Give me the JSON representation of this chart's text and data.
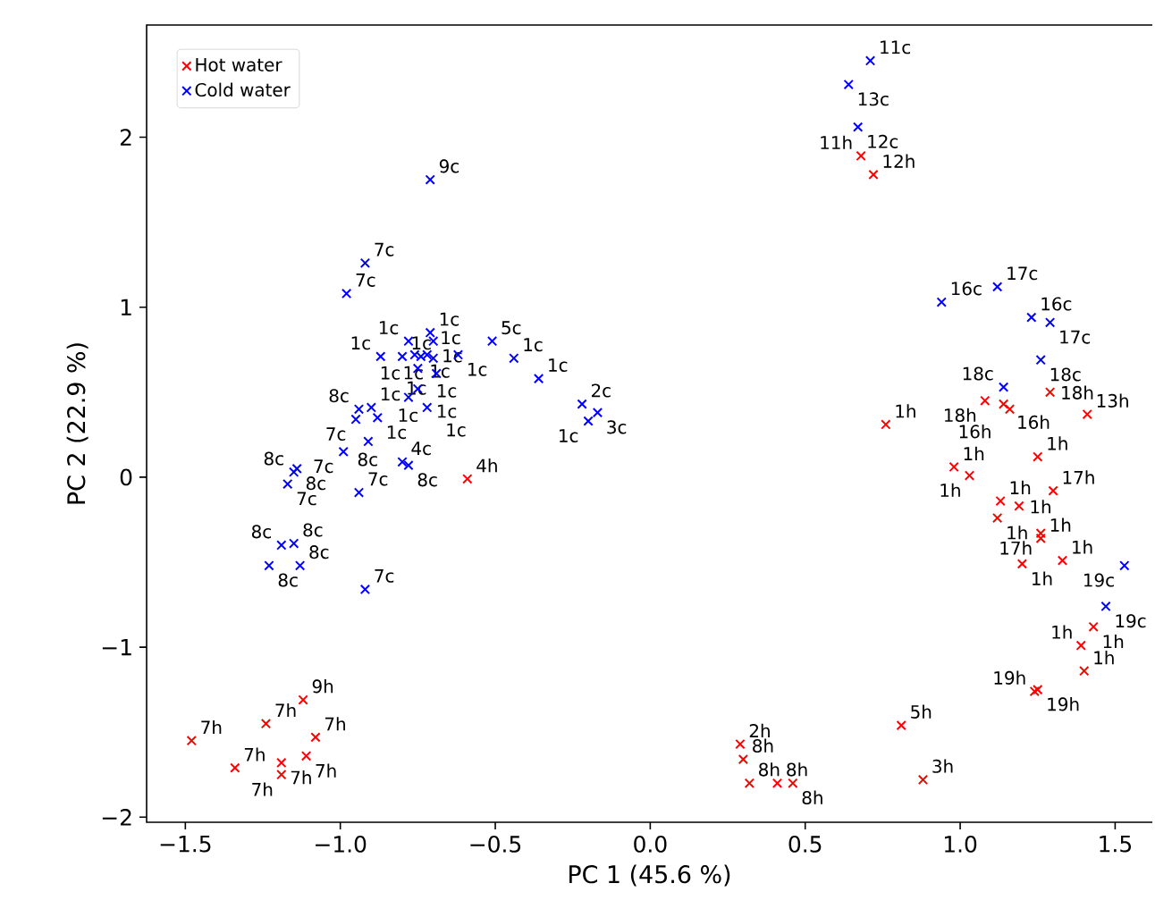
{
  "chart_data": {
    "type": "scatter",
    "xlabel": "PC 1 (45.6 %)",
    "ylabel": "PC 2 (22.9 %)",
    "xlim": [
      -1.625,
      1.62
    ],
    "ylim": [
      -2.03,
      2.66
    ],
    "xticks": [
      {
        "value": -1.5,
        "label": "−1.5"
      },
      {
        "value": -1.0,
        "label": "−1.0"
      },
      {
        "value": -0.5,
        "label": "−0.5"
      },
      {
        "value": 0,
        "label": "0.0"
      },
      0.5,
      {
        "value": 1.0,
        "label": "1.0"
      },
      1.5
    ],
    "yticks": [
      {
        "value": -2,
        "label": "−2"
      },
      {
        "value": -1,
        "label": "−1"
      },
      0,
      1,
      2
    ],
    "legend": "top left",
    "marker": "cross",
    "series": [
      {
        "name": "Hot water",
        "color": "#ff0000",
        "x": [
          -0.59,
          0.68,
          0.72,
          1.08,
          1.14,
          1.16,
          1.29,
          1.41,
          1.25,
          0.98,
          1.03,
          1.3,
          1.13,
          1.19,
          1.12,
          1.26,
          1.26,
          0.76,
          1.2,
          1.33,
          1.43,
          1.39,
          1.4,
          1.25,
          1.24,
          0.81,
          0.88,
          0.29,
          0.3,
          0.32,
          0.41,
          0.46,
          -1.48,
          -1.34,
          -1.24,
          -1.12,
          -1.08,
          -1.11,
          -1.19,
          -1.19
        ],
        "values": [
          -0.01,
          1.89,
          1.78,
          0.45,
          0.43,
          0.4,
          0.5,
          0.37,
          0.12,
          0.06,
          0.01,
          -0.08,
          -0.14,
          -0.17,
          -0.24,
          -0.33,
          -0.36,
          0.31,
          -0.51,
          -0.49,
          -0.88,
          -0.99,
          -1.14,
          -1.25,
          -1.26,
          -1.46,
          -1.78,
          -1.57,
          -1.66,
          -1.8,
          -1.8,
          -1.8,
          -1.55,
          -1.71,
          -1.45,
          -1.31,
          -1.53,
          -1.64,
          -1.68,
          -1.75
        ]
      },
      {
        "name": "Cold water",
        "color": "#0000ff",
        "x": [
          -0.92,
          -0.98,
          -0.71,
          -0.51,
          -0.44,
          -0.36,
          -0.22,
          -0.17,
          -0.2,
          -0.62,
          -0.78,
          -0.99,
          -0.91,
          -0.94,
          -0.78,
          -0.71,
          -0.7,
          -0.87,
          -0.8,
          -0.76,
          -0.74,
          -0.72,
          -0.7,
          -0.75,
          -0.69,
          -0.75,
          -0.78,
          -0.72,
          -0.94,
          -0.9,
          -0.95,
          -0.88,
          -1.14,
          -1.17,
          -1.19,
          -1.15,
          -1.23,
          -1.13,
          -0.92,
          -0.8,
          -1.15,
          0.71,
          0.64,
          0.67,
          0.94,
          1.12,
          1.23,
          1.29,
          1.26,
          1.14,
          1.53,
          1.47
        ],
        "values": [
          1.26,
          1.08,
          1.75,
          0.8,
          0.7,
          0.58,
          0.43,
          0.38,
          0.33,
          0.72,
          0.07,
          0.15,
          0.21,
          -0.09,
          0.8,
          0.85,
          0.8,
          0.71,
          0.71,
          0.72,
          0.71,
          0.72,
          0.7,
          0.64,
          0.61,
          0.52,
          0.47,
          0.41,
          0.4,
          0.41,
          0.34,
          0.35,
          0.05,
          -0.04,
          -0.4,
          -0.39,
          -0.52,
          -0.52,
          -0.66,
          0.09,
          0.03,
          2.45,
          2.31,
          2.06,
          1.03,
          1.12,
          0.94,
          0.91,
          0.69,
          0.53,
          -0.52,
          -0.76
        ]
      }
    ],
    "annotations": [
      {
        "text": "4h",
        "x": -0.59,
        "y": -0.01
      },
      {
        "text": "11h",
        "x": 0.68,
        "y": 1.89
      },
      {
        "text": "12h",
        "x": 0.72,
        "y": 1.78
      },
      {
        "text": "18h",
        "x": 1.08,
        "y": 0.45
      },
      {
        "text": "16h",
        "x": 1.14,
        "y": 0.43
      },
      {
        "text": "16h",
        "x": 1.16,
        "y": 0.4
      },
      {
        "text": "18h",
        "x": 1.29,
        "y": 0.5
      },
      {
        "text": "13h",
        "x": 1.41,
        "y": 0.37
      },
      {
        "text": "1h",
        "x": 1.25,
        "y": 0.12
      },
      {
        "text": "1h",
        "x": 0.98,
        "y": 0.06
      },
      {
        "text": "1h",
        "x": 1.03,
        "y": 0.01
      },
      {
        "text": "17h",
        "x": 1.3,
        "y": -0.08
      },
      {
        "text": "1h",
        "x": 1.13,
        "y": -0.14
      },
      {
        "text": "1h",
        "x": 1.19,
        "y": -0.17
      },
      {
        "text": "1h",
        "x": 1.12,
        "y": -0.24
      },
      {
        "text": "17h",
        "x": 1.26,
        "y": -0.33
      },
      {
        "text": "1h",
        "x": 1.26,
        "y": -0.36
      },
      {
        "text": "1h",
        "x": 0.76,
        "y": 0.31
      },
      {
        "text": "1h",
        "x": 1.2,
        "y": -0.51
      },
      {
        "text": "1h",
        "x": 1.33,
        "y": -0.49
      },
      {
        "text": "1h",
        "x": 1.43,
        "y": -0.88
      },
      {
        "text": "1h",
        "x": 1.39,
        "y": -0.99
      },
      {
        "text": "1h",
        "x": 1.4,
        "y": -1.14
      },
      {
        "text": "19h",
        "x": 1.25,
        "y": -1.25
      },
      {
        "text": "19h",
        "x": 1.24,
        "y": -1.26
      },
      {
        "text": "5h",
        "x": 0.81,
        "y": -1.46
      },
      {
        "text": "3h",
        "x": 0.88,
        "y": -1.78
      },
      {
        "text": "2h",
        "x": 0.29,
        "y": -1.57
      },
      {
        "text": "8h",
        "x": 0.3,
        "y": -1.66
      },
      {
        "text": "8h",
        "x": 0.32,
        "y": -1.8
      },
      {
        "text": "8h",
        "x": 0.41,
        "y": -1.8
      },
      {
        "text": "8h",
        "x": 0.46,
        "y": -1.8
      },
      {
        "text": "7h",
        "x": -1.48,
        "y": -1.55
      },
      {
        "text": "7h",
        "x": -1.34,
        "y": -1.71
      },
      {
        "text": "7h",
        "x": -1.24,
        "y": -1.45
      },
      {
        "text": "9h",
        "x": -1.12,
        "y": -1.31
      },
      {
        "text": "7h",
        "x": -1.08,
        "y": -1.53
      },
      {
        "text": "7h",
        "x": -1.11,
        "y": -1.64
      },
      {
        "text": "7h",
        "x": -1.19,
        "y": -1.68
      },
      {
        "text": "7h",
        "x": -1.19,
        "y": -1.75
      },
      {
        "text": "7c",
        "x": -0.92,
        "y": 1.26
      },
      {
        "text": "7c",
        "x": -0.98,
        "y": 1.08
      },
      {
        "text": "9c",
        "x": -0.71,
        "y": 1.75
      },
      {
        "text": "5c",
        "x": -0.51,
        "y": 0.8
      },
      {
        "text": "1c",
        "x": -0.44,
        "y": 0.7
      },
      {
        "text": "1c",
        "x": -0.36,
        "y": 0.58
      },
      {
        "text": "2c",
        "x": -0.22,
        "y": 0.43
      },
      {
        "text": "3c",
        "x": -0.17,
        "y": 0.38
      },
      {
        "text": "1c",
        "x": -0.2,
        "y": 0.33
      },
      {
        "text": "1c",
        "x": -0.62,
        "y": 0.72
      },
      {
        "text": "8c",
        "x": -0.78,
        "y": 0.07
      },
      {
        "text": "7c",
        "x": -0.99,
        "y": 0.15
      },
      {
        "text": "8c",
        "x": -0.91,
        "y": 0.21
      },
      {
        "text": "7c",
        "x": -0.94,
        "y": -0.09
      },
      {
        "text": "1c",
        "x": -0.78,
        "y": 0.8
      },
      {
        "text": "1c",
        "x": -0.71,
        "y": 0.85
      },
      {
        "text": "1c",
        "x": -0.7,
        "y": 0.8
      },
      {
        "text": "1c",
        "x": -0.87,
        "y": 0.71
      },
      {
        "text": "1c",
        "x": -0.8,
        "y": 0.71
      },
      {
        "text": "1c",
        "x": -0.76,
        "y": 0.72
      },
      {
        "text": "1c",
        "x": -0.74,
        "y": 0.71
      },
      {
        "text": "1c",
        "x": -0.72,
        "y": 0.72
      },
      {
        "text": "1c",
        "x": -0.7,
        "y": 0.7
      },
      {
        "text": "1c",
        "x": -0.75,
        "y": 0.64
      },
      {
        "text": "1c",
        "x": -0.69,
        "y": 0.61
      },
      {
        "text": "1c",
        "x": -0.75,
        "y": 0.52
      },
      {
        "text": "1c",
        "x": -0.78,
        "y": 0.47
      },
      {
        "text": "1c",
        "x": -0.72,
        "y": 0.41
      },
      {
        "text": "8c",
        "x": -0.94,
        "y": 0.4
      },
      {
        "text": "1c",
        "x": -0.9,
        "y": 0.41
      },
      {
        "text": "7c",
        "x": -0.95,
        "y": 0.34
      },
      {
        "text": "1c",
        "x": -0.88,
        "y": 0.35
      },
      {
        "text": "8c",
        "x": -1.14,
        "y": 0.05
      },
      {
        "text": "7c",
        "x": -1.17,
        "y": -0.04
      },
      {
        "text": "8c",
        "x": -1.19,
        "y": -0.4
      },
      {
        "text": "8c",
        "x": -1.15,
        "y": -0.39
      },
      {
        "text": "8c",
        "x": -1.23,
        "y": -0.52
      },
      {
        "text": "8c",
        "x": -1.13,
        "y": -0.52
      },
      {
        "text": "7c",
        "x": -0.92,
        "y": -0.66
      },
      {
        "text": "4c",
        "x": -0.8,
        "y": 0.09
      },
      {
        "text": "8c",
        "x": -1.15,
        "y": 0.03
      },
      {
        "text": "11c",
        "x": 0.71,
        "y": 2.45
      },
      {
        "text": "13c",
        "x": 0.64,
        "y": 2.31
      },
      {
        "text": "12c",
        "x": 0.67,
        "y": 2.06
      },
      {
        "text": "16c",
        "x": 0.94,
        "y": 1.03
      },
      {
        "text": "17c",
        "x": 1.12,
        "y": 1.12
      },
      {
        "text": "16c",
        "x": 1.23,
        "y": 0.94
      },
      {
        "text": "17c",
        "x": 1.29,
        "y": 0.91
      },
      {
        "text": "18c",
        "x": 1.26,
        "y": 0.69
      },
      {
        "text": "18c",
        "x": 1.14,
        "y": 0.53
      },
      {
        "text": "19c",
        "x": 1.53,
        "y": -0.52
      },
      {
        "text": "19c",
        "x": 1.47,
        "y": -0.76
      }
    ]
  }
}
